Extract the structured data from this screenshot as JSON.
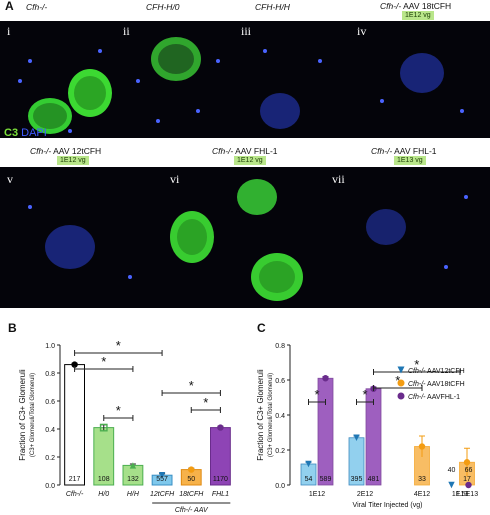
{
  "figure_label": "A",
  "panels_top": [
    {
      "roman": "i",
      "strain": "Cfh-/-",
      "dose": ""
    },
    {
      "roman": "ii",
      "strain": "CFH-H/0",
      "dose": ""
    },
    {
      "roman": "iii",
      "strain": "CFH-H/H",
      "dose": ""
    },
    {
      "roman": "iv",
      "strain_italic": "Cfh-/-",
      "strain_rest": " AAV 18tCFH",
      "dose": "1E12 vg"
    }
  ],
  "panels_bottom": [
    {
      "roman": "v",
      "strain_italic": "Cfh-/-",
      "strain_rest": " AAV 12tCFH",
      "dose": "1E12 vg"
    },
    {
      "roman": "vi",
      "strain_italic": "Cfh-/-",
      "strain_rest": " AAV FHL-1",
      "dose": "1E12 vg"
    },
    {
      "roman": "vii",
      "strain_italic": "Cfh-/-",
      "strain_rest": " AAV FHL-1",
      "dose": "1E13 vg"
    }
  ],
  "stain_legend": {
    "c3": "C3",
    "dapi": "DAPI",
    "c3_color": "#7be03a",
    "dapi_color": "#3f5bff"
  },
  "colors": {
    "white": "#ffffff",
    "green": "#a6e08a",
    "lightblue": "#7fc8ec",
    "orange": "#f7b24a",
    "purple": "#8e44b5",
    "c3": "#7be03a",
    "dapi": "#3f5bff"
  },
  "chart_data": [
    {
      "panel": "B",
      "type": "bar",
      "ylabel": "Fraction of C3+ Glomeruli",
      "ylabel_sub": "(C3+ Glomeruli/Total Glomeruli)",
      "ylim": [
        0,
        1.0
      ],
      "yticks": [
        "0.0",
        "0.2",
        "0.4",
        "0.6",
        "0.8",
        "1.0"
      ],
      "categories": [
        "Cfh-/-",
        "H/0",
        "H/H",
        "12tCFH",
        "18tCFH",
        "FHL1"
      ],
      "values": [
        0.86,
        0.41,
        0.14,
        0.07,
        0.11,
        0.41
      ],
      "errors": [
        0.01,
        0.02,
        0.01,
        0.01,
        0.01,
        0.01
      ],
      "counts": [
        "217",
        "108",
        "132",
        "557",
        "50",
        "1170"
      ],
      "bar_colors": [
        "#ffffff",
        "#a6e08a",
        "#a6e08a",
        "#7fc8ec",
        "#f7b24a",
        "#8e44b5"
      ],
      "edge_colors": [
        "#000000",
        "#4caf50",
        "#4caf50",
        "#3a8fc4",
        "#e08a10",
        "#6a2c8c"
      ],
      "markers": [
        "circle",
        "square",
        "triangle-up",
        "triangle-down",
        "circle",
        "circle"
      ],
      "marker_colors": [
        "#000000",
        "#4caf50",
        "#4caf50",
        "#1f77b4",
        "#f39c12",
        "#6a2c8c"
      ],
      "group_label": "Cfh-/- AAV",
      "sig_stars": "*"
    },
    {
      "panel": "C",
      "type": "bar",
      "xlabel": "Viral Titer Injected (vg)",
      "ylabel": "Fraction of C3+ Glomeruli",
      "ylabel_sub": "(C3+ Glomeruli/Total Glomeruli)",
      "ylim": [
        0,
        0.8
      ],
      "yticks": [
        "0.0",
        "0.2",
        "0.4",
        "0.6",
        "0.8"
      ],
      "groups": [
        "1E12",
        "2E12",
        "4E12",
        "1E13",
        "1.5E13"
      ],
      "series": [
        {
          "name": "Cfh-/- AAV12tCFH",
          "name_italic": "Cfh-/-",
          "name_rest": " AAV12tCFH",
          "color": "#7fc8ec",
          "marker": "triangle-down",
          "marker_color": "#1f77b4",
          "points": [
            {
              "group": "1E12",
              "value": 0.12,
              "err": 0.01,
              "n": "54"
            },
            {
              "group": "2E12",
              "value": 0.27,
              "err": 0.01,
              "n": "395"
            },
            {
              "group": "1E13",
              "value": 0.0,
              "err": 0.0,
              "n": "40"
            }
          ]
        },
        {
          "name": "Cfh-/- AAV18tCFH",
          "name_italic": "Cfh-/-",
          "name_rest": " AAV18tCFH",
          "color": "#f7b24a",
          "marker": "circle",
          "marker_color": "#f39c12",
          "points": [
            {
              "group": "4E12",
              "value": 0.22,
              "err": 0.06,
              "n": "33"
            },
            {
              "group": "1.5E13",
              "value": 0.13,
              "err": 0.08,
              "n": "17"
            }
          ]
        },
        {
          "name": "Cfh-/- AAVFHL-1",
          "name_italic": "Cfh-/-",
          "name_rest": " AAVFHL-1",
          "color": "#8e44b5",
          "marker": "circle",
          "marker_color": "#6a2c8c",
          "points": [
            {
              "group": "1E12",
              "value": 0.61,
              "err": 0.01,
              "n": "589"
            },
            {
              "group": "2E12",
              "value": 0.55,
              "err": 0.01,
              "n": "481"
            },
            {
              "group": "1E13",
              "value": 0.0,
              "err": 0.0,
              "n": "66"
            }
          ]
        }
      ],
      "sig_stars": "*"
    }
  ]
}
